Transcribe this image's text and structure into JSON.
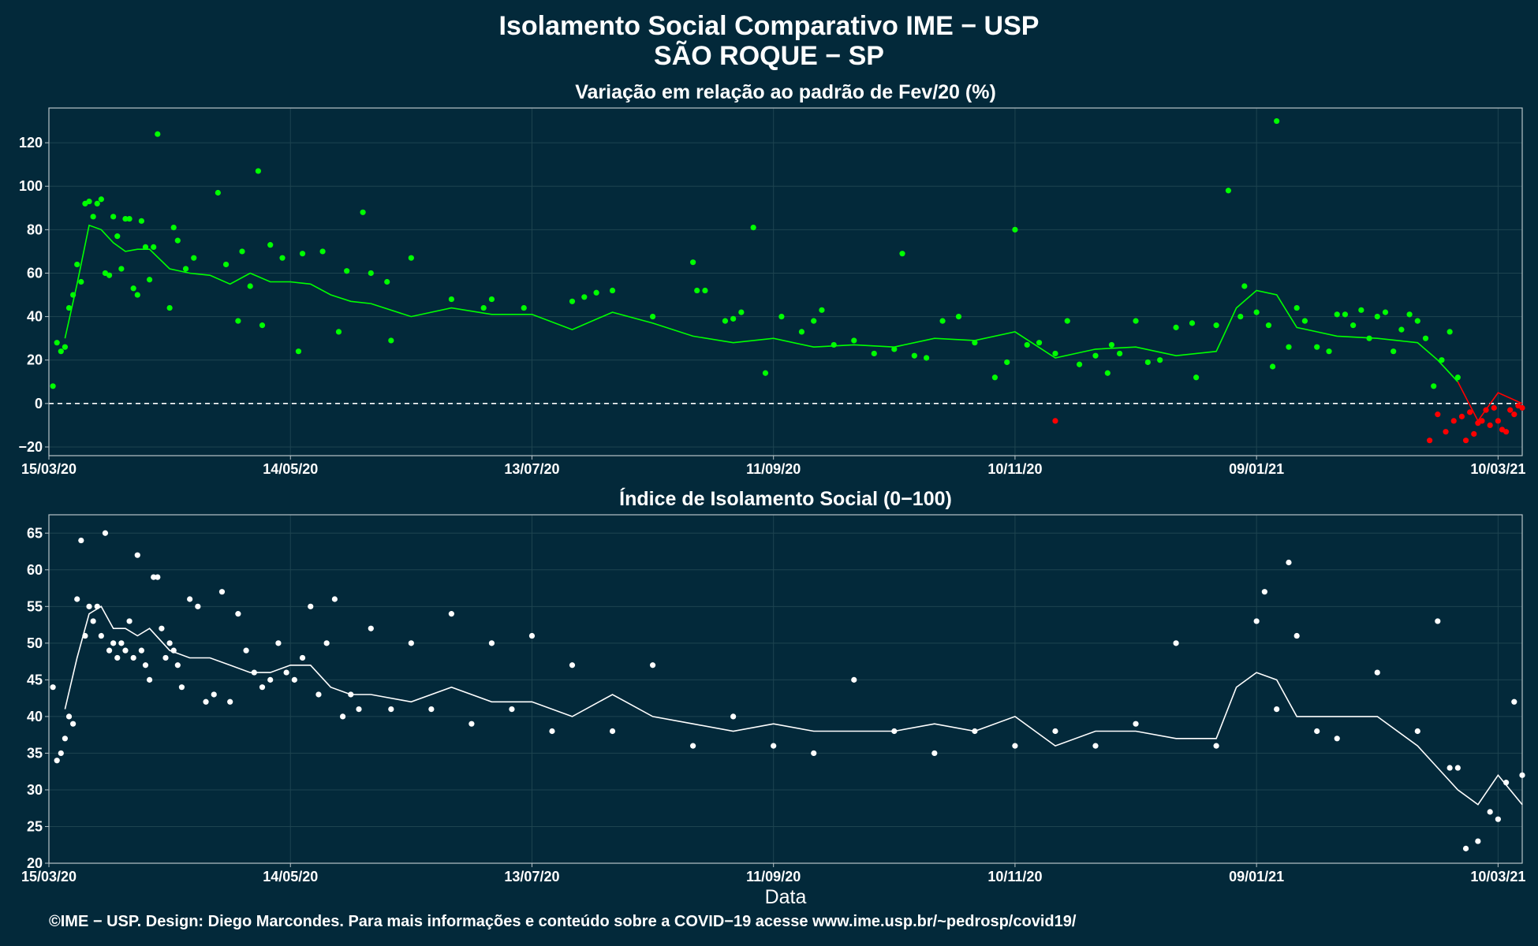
{
  "header": {
    "title": "Isolamento Social Comparativo IME − USP",
    "subtitle": "SÃO ROQUE − SP"
  },
  "footer": {
    "credit": "©IME − USP. Design: Diego Marcondes. Para mais informações e conteúdo sobre a COVID−19 acesse www.ime.usp.br/~pedrosp/covid19/"
  },
  "colors": {
    "background": "#03293a",
    "positive": "#00ff00",
    "negative": "#ff0000",
    "index": "#ffffff",
    "grid": "#1e4450",
    "axis": "#b9c4c8"
  },
  "chart_data": [
    {
      "type": "scatter",
      "title": "Variação em relação ao padrão de Fev/20 (%)",
      "xlabel": "",
      "ylabel": "",
      "x_start": "15/03/20",
      "x_end": "16/03/21",
      "x_tick_labels": [
        "15/03/20",
        "14/05/20",
        "13/07/20",
        "11/09/20",
        "10/11/20",
        "09/01/21",
        "10/03/21"
      ],
      "y_ticks": [
        -20,
        0,
        20,
        40,
        60,
        80,
        100,
        120
      ],
      "ylim": [
        -24,
        136
      ],
      "reference_line": 0,
      "grid": true,
      "points_days": [
        1,
        2,
        3,
        4,
        5,
        6,
        7,
        8,
        9,
        10,
        11,
        12,
        13,
        14,
        15,
        16,
        17,
        18,
        19,
        20,
        21,
        22,
        23,
        24,
        25,
        26,
        27,
        30,
        31,
        32,
        34,
        36,
        42,
        44,
        47,
        48,
        50,
        52,
        53,
        55,
        58,
        62,
        63,
        68,
        72,
        74,
        78,
        80,
        84,
        85,
        90,
        100,
        108,
        110,
        118,
        130,
        133,
        136,
        140,
        150,
        160,
        161,
        163,
        168,
        170,
        172,
        175,
        178,
        182,
        187,
        190,
        192,
        195,
        200,
        205,
        210,
        212,
        215,
        218,
        222,
        226,
        230,
        235,
        238,
        240,
        243,
        246,
        250,
        253,
        256,
        260,
        263,
        264,
        266,
        270,
        273,
        276,
        280,
        284,
        285,
        290,
        293,
        296,
        297,
        300,
        303,
        304,
        305,
        308,
        310,
        312,
        315,
        318,
        320,
        322,
        324,
        326,
        328,
        330,
        332,
        334,
        336,
        338,
        340,
        342,
        344,
        346,
        348,
        350,
        352,
        354,
        356,
        358,
        360,
        362,
        364,
        366
      ],
      "points": [
        8,
        28,
        24,
        26,
        44,
        50,
        64,
        56,
        92,
        93,
        86,
        92,
        94,
        60,
        59,
        86,
        77,
        62,
        85,
        85,
        53,
        50,
        84,
        72,
        57,
        72,
        124,
        44,
        81,
        75,
        62,
        67,
        97,
        64,
        38,
        70,
        54,
        107,
        36,
        73,
        67,
        24,
        69,
        70,
        33,
        61,
        88,
        60,
        56,
        29,
        67,
        48,
        44,
        48,
        44,
        47,
        49,
        51,
        52,
        40,
        65,
        52,
        52,
        38,
        39,
        42,
        81,
        14,
        40,
        33,
        38,
        43,
        27,
        29,
        23,
        25,
        69,
        22,
        21,
        38,
        40,
        28,
        12,
        19,
        80,
        27,
        28,
        23,
        38,
        18,
        22,
        14,
        27,
        23,
        38,
        19,
        20,
        35,
        37,
        12,
        36,
        98,
        40,
        54,
        42,
        36,
        17,
        130,
        26,
        44,
        38,
        26,
        24,
        41,
        41,
        36,
        43,
        30,
        40,
        42,
        24,
        34,
        41,
        38,
        30,
        8,
        20,
        33,
        12,
        -17,
        -14,
        -8,
        -10,
        -8,
        -13,
        -5,
        -2
      ],
      "negative_points_days": [
        250,
        343,
        345,
        347,
        349,
        351,
        353,
        355,
        357,
        359,
        361,
        363,
        365
      ],
      "negative_points": [
        -8,
        -17,
        -5,
        -13,
        -8,
        -6,
        -4,
        -9,
        -3,
        -2,
        -12,
        -3,
        -1
      ],
      "moving_average_days": [
        4,
        7,
        10,
        13,
        16,
        19,
        22,
        25,
        30,
        35,
        40,
        45,
        50,
        55,
        60,
        65,
        70,
        75,
        80,
        90,
        100,
        110,
        120,
        130,
        140,
        150,
        160,
        170,
        180,
        190,
        200,
        210,
        220,
        230,
        240,
        250,
        260,
        270,
        280,
        290,
        295,
        300,
        305,
        310,
        315,
        320,
        330,
        340,
        345,
        350,
        355,
        360,
        366
      ],
      "moving_average": [
        30,
        55,
        82,
        80,
        74,
        70,
        71,
        71,
        62,
        60,
        59,
        55,
        60,
        56,
        56,
        55,
        50,
        47,
        46,
        40,
        44,
        41,
        41,
        34,
        42,
        37,
        31,
        28,
        30,
        26,
        27,
        26,
        30,
        29,
        33,
        21,
        25,
        26,
        22,
        24,
        44,
        52,
        50,
        35,
        33,
        31,
        30,
        28,
        20,
        10,
        -8,
        5,
        0
      ]
    },
    {
      "type": "scatter",
      "title": "Índice de Isolamento Social (0−100)",
      "xlabel": "Data",
      "ylabel": "",
      "x_start": "15/03/20",
      "x_end": "16/03/21",
      "x_tick_labels": [
        "15/03/20",
        "14/05/20",
        "13/07/20",
        "11/09/20",
        "10/11/20",
        "09/01/21",
        "10/03/21"
      ],
      "y_ticks": [
        20,
        25,
        30,
        35,
        40,
        45,
        50,
        55,
        60,
        65
      ],
      "ylim": [
        20,
        67.5
      ],
      "grid": true,
      "points_days": [
        1,
        2,
        3,
        4,
        5,
        6,
        7,
        8,
        9,
        10,
        11,
        12,
        13,
        14,
        15,
        16,
        17,
        18,
        19,
        20,
        21,
        22,
        23,
        24,
        25,
        26,
        27,
        28,
        29,
        30,
        31,
        32,
        33,
        35,
        37,
        39,
        41,
        43,
        45,
        47,
        49,
        51,
        53,
        55,
        57,
        59,
        61,
        63,
        65,
        67,
        69,
        71,
        73,
        75,
        77,
        80,
        85,
        90,
        95,
        100,
        105,
        110,
        115,
        120,
        125,
        130,
        140,
        150,
        160,
        170,
        180,
        190,
        200,
        210,
        220,
        230,
        240,
        250,
        260,
        270,
        280,
        290,
        300,
        302,
        305,
        308,
        310,
        315,
        320,
        330,
        340,
        345,
        348,
        350,
        352,
        355,
        358,
        360,
        362,
        364,
        366
      ],
      "points": [
        44,
        34,
        35,
        37,
        40,
        39,
        56,
        64,
        51,
        55,
        53,
        55,
        51,
        65,
        49,
        50,
        48,
        50,
        49,
        53,
        48,
        62,
        49,
        47,
        45,
        59,
        59,
        52,
        48,
        50,
        49,
        47,
        44,
        56,
        55,
        42,
        43,
        57,
        42,
        54,
        49,
        46,
        44,
        45,
        50,
        46,
        45,
        48,
        55,
        43,
        50,
        56,
        40,
        43,
        41,
        52,
        41,
        50,
        41,
        54,
        39,
        50,
        41,
        51,
        38,
        47,
        38,
        47,
        36,
        40,
        36,
        35,
        45,
        38,
        35,
        38,
        36,
        38,
        36,
        39,
        50,
        36,
        53,
        57,
        41,
        61,
        51,
        38,
        37,
        46,
        38,
        53,
        33,
        33,
        22,
        23,
        27,
        26,
        31,
        42,
        32
      ],
      "moving_average_days": [
        4,
        7,
        10,
        13,
        16,
        19,
        22,
        25,
        30,
        35,
        40,
        45,
        50,
        55,
        60,
        65,
        70,
        75,
        80,
        90,
        100,
        110,
        120,
        130,
        140,
        150,
        160,
        170,
        180,
        190,
        200,
        210,
        220,
        230,
        240,
        250,
        260,
        270,
        280,
        290,
        295,
        300,
        305,
        310,
        315,
        320,
        330,
        340,
        345,
        350,
        355,
        360,
        366
      ],
      "moving_average": [
        41,
        48,
        54,
        55,
        52,
        52,
        51,
        52,
        49,
        48,
        48,
        47,
        46,
        46,
        47,
        47,
        44,
        43,
        43,
        42,
        44,
        42,
        42,
        40,
        43,
        40,
        39,
        38,
        39,
        38,
        38,
        38,
        39,
        38,
        40,
        36,
        38,
        38,
        37,
        37,
        44,
        46,
        45,
        40,
        40,
        40,
        40,
        36,
        33,
        30,
        28,
        32,
        28
      ]
    }
  ]
}
